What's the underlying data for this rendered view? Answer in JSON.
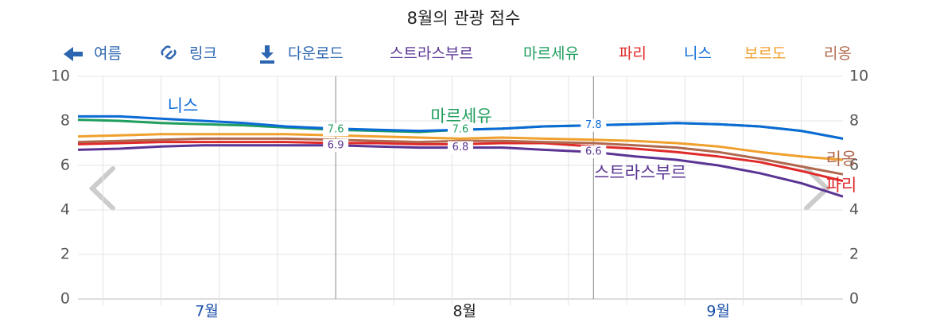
{
  "chart_data": {
    "type": "line",
    "title": "8월의 관광 점수",
    "toolbar": [
      "여름",
      "링크",
      "다운로드"
    ],
    "x": [
      0,
      5,
      10,
      15,
      20,
      25,
      31,
      36,
      41,
      46,
      51,
      56,
      62,
      67,
      72,
      77,
      82,
      87,
      92
    ],
    "xlim": [
      0,
      92
    ],
    "xticks": [
      {
        "value": 15.5,
        "label": "7월"
      },
      {
        "value": 46.5,
        "label": "8월"
      },
      {
        "value": 77,
        "label": "9월"
      }
    ],
    "xtick_colors": [
      "#1a4fa8",
      "#222222",
      "#1a4fa8"
    ],
    "month_boundaries": [
      31,
      62
    ],
    "xgrid": [
      3,
      10,
      17,
      24,
      38,
      45,
      52,
      59,
      66,
      73,
      80,
      87
    ],
    "ylim": [
      0,
      10
    ],
    "yticks": [
      0,
      2,
      4,
      6,
      8,
      10
    ],
    "grid": true,
    "series": [
      {
        "name": "스트라스부르",
        "color": "#5a3494",
        "labeled": [
          6,
          9,
          12
        ],
        "values": [
          6.7,
          6.75,
          6.85,
          6.9,
          6.9,
          6.9,
          6.9,
          6.85,
          6.8,
          6.8,
          6.8,
          6.7,
          6.6,
          6.4,
          6.25,
          6.0,
          5.65,
          5.2,
          4.6
        ]
      },
      {
        "name": "마르세유",
        "color": "#1f9e5e",
        "labeled": [
          6,
          9
        ],
        "values": [
          8.05,
          8.0,
          7.9,
          7.85,
          7.8,
          7.7,
          7.6,
          7.55,
          7.5,
          7.6,
          7.65,
          7.75,
          7.8,
          7.85,
          7.9,
          7.85,
          7.75,
          7.55,
          7.2
        ]
      },
      {
        "name": "파리",
        "color": "#e02a2a",
        "labeled": [],
        "values": [
          6.95,
          7.0,
          7.05,
          7.05,
          7.05,
          7.05,
          7.0,
          7.0,
          6.95,
          6.95,
          7.0,
          7.0,
          6.85,
          6.75,
          6.6,
          6.4,
          6.15,
          5.75,
          5.3
        ]
      },
      {
        "name": "니스",
        "color": "#0b6bd6",
        "labeled": [
          12
        ],
        "values": [
          8.2,
          8.2,
          8.1,
          8.0,
          7.9,
          7.75,
          7.65,
          7.6,
          7.55,
          7.6,
          7.65,
          7.75,
          7.8,
          7.85,
          7.9,
          7.85,
          7.75,
          7.55,
          7.2
        ]
      },
      {
        "name": "보르도",
        "color": "#f0a02c",
        "labeled": [],
        "values": [
          7.3,
          7.35,
          7.4,
          7.4,
          7.4,
          7.4,
          7.35,
          7.3,
          7.25,
          7.2,
          7.25,
          7.2,
          7.15,
          7.1,
          7.0,
          6.85,
          6.6,
          6.4,
          6.25
        ]
      },
      {
        "name": "리옹",
        "color": "#b0694f",
        "labeled": [],
        "values": [
          7.05,
          7.1,
          7.15,
          7.2,
          7.2,
          7.2,
          7.15,
          7.1,
          7.05,
          7.1,
          7.1,
          7.05,
          7.0,
          6.9,
          6.8,
          6.6,
          6.3,
          5.95,
          5.6
        ]
      }
    ]
  }
}
